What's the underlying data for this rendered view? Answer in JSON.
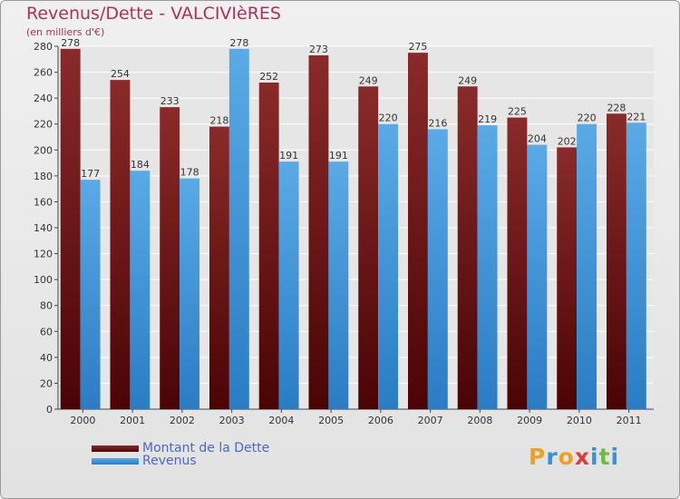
{
  "chart_data": {
    "type": "bar",
    "title": "Revenus/Dette - VALCIVIèRES",
    "subtitle": "(en milliers d'€)",
    "categories": [
      "2000",
      "2001",
      "2002",
      "2003",
      "2004",
      "2005",
      "2006",
      "2007",
      "2008",
      "2009",
      "2010",
      "2011"
    ],
    "series": [
      {
        "name": "Montant de la Dette",
        "color": "#7a1e1e",
        "values": [
          278,
          254,
          233,
          218,
          252,
          273,
          249,
          275,
          249,
          225,
          202,
          228
        ]
      },
      {
        "name": "Revenus",
        "color": "#3f95d8",
        "values": [
          177,
          184,
          178,
          278,
          191,
          191,
          220,
          216,
          219,
          204,
          220,
          221
        ]
      }
    ],
    "ylim": [
      0,
      280
    ],
    "yticks": [
      0,
      20,
      40,
      60,
      80,
      100,
      120,
      140,
      160,
      180,
      200,
      220,
      240,
      260,
      280
    ],
    "grid": true,
    "legend_position": "bottom-left"
  },
  "logo": {
    "letters": [
      "P",
      "r",
      "o",
      "x",
      "i",
      "t",
      "i"
    ],
    "colors": [
      "#f0a020",
      "#3a8fd8",
      "#f0a020",
      "#e03a3a",
      "#3a8fd8",
      "#6bbf3a",
      "#3a8fd8"
    ]
  }
}
